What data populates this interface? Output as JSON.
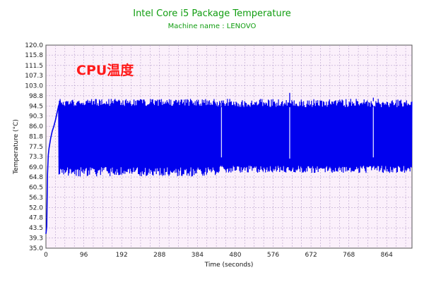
{
  "chart_data": {
    "type": "line",
    "title": "Intel Core i5 Package Temperature",
    "subtitle": "Machine name : LENOVO",
    "xlabel": "Time (seconds)",
    "ylabel": "Temperature (°C)",
    "annotation": "CPU温度",
    "xlim": [
      0,
      928
    ],
    "ylim": [
      35.0,
      120.0
    ],
    "xticks": [
      "0",
      "96",
      "192",
      "288",
      "384",
      "480",
      "576",
      "672",
      "768",
      "864"
    ],
    "yticks": [
      "35.0",
      "39.3",
      "43.5",
      "47.8",
      "52.0",
      "56.3",
      "60.5",
      "64.8",
      "69.0",
      "73.3",
      "77.5",
      "81.8",
      "86.0",
      "90.3",
      "94.5",
      "98.8",
      "103.0",
      "107.3",
      "111.5",
      "115.8",
      "120.0"
    ],
    "grid": true,
    "colors": {
      "line": "#0000ee",
      "plot_bg": "#fbf0fb",
      "grid": "#b8a0cc",
      "title": "#109d10",
      "annotation": "#ff1a1a"
    },
    "series": [
      {
        "x": [
          0,
          2,
          4,
          6,
          8,
          12,
          16,
          20,
          24,
          28,
          30,
          32,
          34,
          36,
          38,
          40,
          45,
          50,
          60
        ],
        "y": [
          41.0,
          44.0,
          66.0,
          74.0,
          77.0,
          81.0,
          84.0,
          86.0,
          88.5,
          91.5,
          93.0,
          94.5,
          95.5,
          96.5,
          95.0,
          83.0,
          76.0,
          71.0,
          68.0
        ]
      }
    ],
    "oscillation": {
      "x_range": [
        32,
        928
      ],
      "upper_early": [
        94.5,
        97.5
      ],
      "lower_early": [
        65.0,
        69.0
      ],
      "upper_late": [
        94.0,
        97.5
      ],
      "lower_late": [
        66.5,
        69.5
      ]
    },
    "spikes": [
      {
        "x": 445,
        "low": 73.0,
        "high": 96.0
      },
      {
        "x": 618,
        "low": 72.5,
        "high": 100.0
      },
      {
        "x": 830,
        "low": 73.0,
        "high": 98.0
      }
    ]
  }
}
